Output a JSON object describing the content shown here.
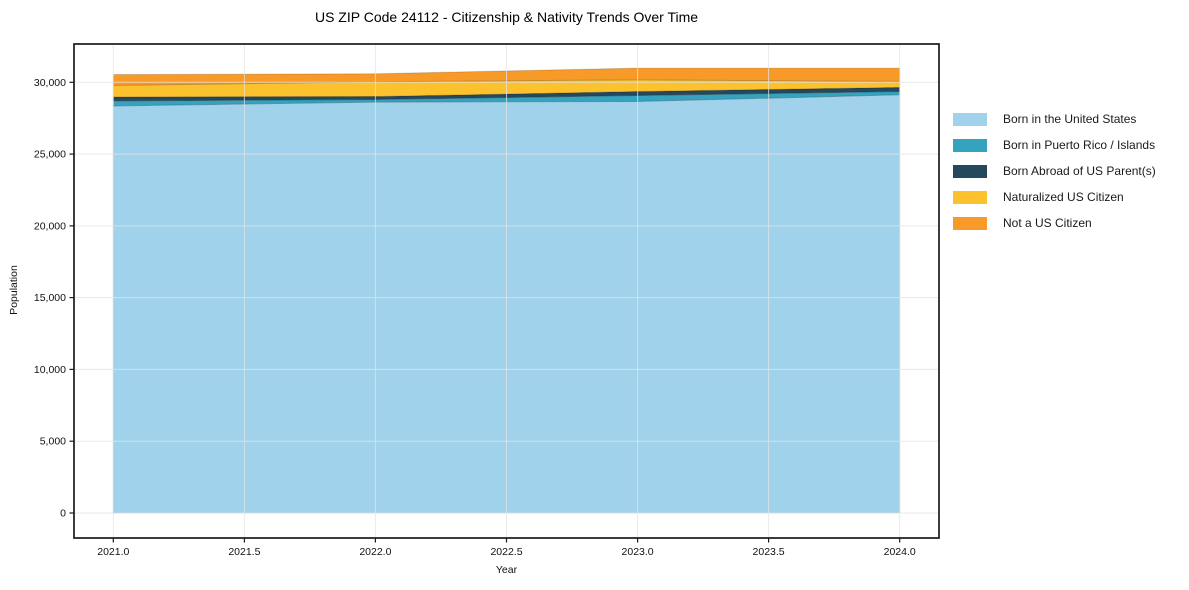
{
  "chart_data": {
    "type": "area",
    "stacked": true,
    "title": "US ZIP Code 24112 - Citizenship & Nativity Trends Over Time",
    "xlabel": "Year",
    "ylabel": "Population",
    "x": [
      2021,
      2022,
      2023,
      2024
    ],
    "series": [
      {
        "name": "Born in the United States",
        "color": "#a0d3eb",
        "values": [
          28350,
          28620,
          28660,
          29130
        ]
      },
      {
        "name": "Born in Puerto Rico / Islands",
        "color": "#35a3bd",
        "values": [
          350,
          180,
          420,
          230
        ]
      },
      {
        "name": "Born Abroad of US Parent(s)",
        "color": "#25485d",
        "values": [
          280,
          210,
          280,
          280
        ]
      },
      {
        "name": "Naturalized US Citizen",
        "color": "#fcc22e",
        "values": [
          800,
          1020,
          810,
          420
        ]
      },
      {
        "name": "Not a US Citizen",
        "color": "#f79a28",
        "values": [
          760,
          560,
          820,
          930
        ]
      }
    ],
    "xticks": [
      2021.0,
      2021.5,
      2022.0,
      2022.5,
      2023.0,
      2023.5,
      2024.0
    ],
    "xtick_labels": [
      "2021.0",
      "2021.5",
      "2022.0",
      "2022.5",
      "2023.0",
      "2023.5",
      "2024.0"
    ],
    "yticks": [
      0,
      5000,
      10000,
      15000,
      20000,
      25000,
      30000
    ],
    "ytick_labels": [
      "0",
      "5,000",
      "10,000",
      "15,000",
      "20,000",
      "25,000",
      "30,000"
    ],
    "xlim": [
      2020.85,
      2024.15
    ],
    "ylim": [
      -1741,
      32666
    ],
    "grid": true,
    "legend_position": "right"
  }
}
